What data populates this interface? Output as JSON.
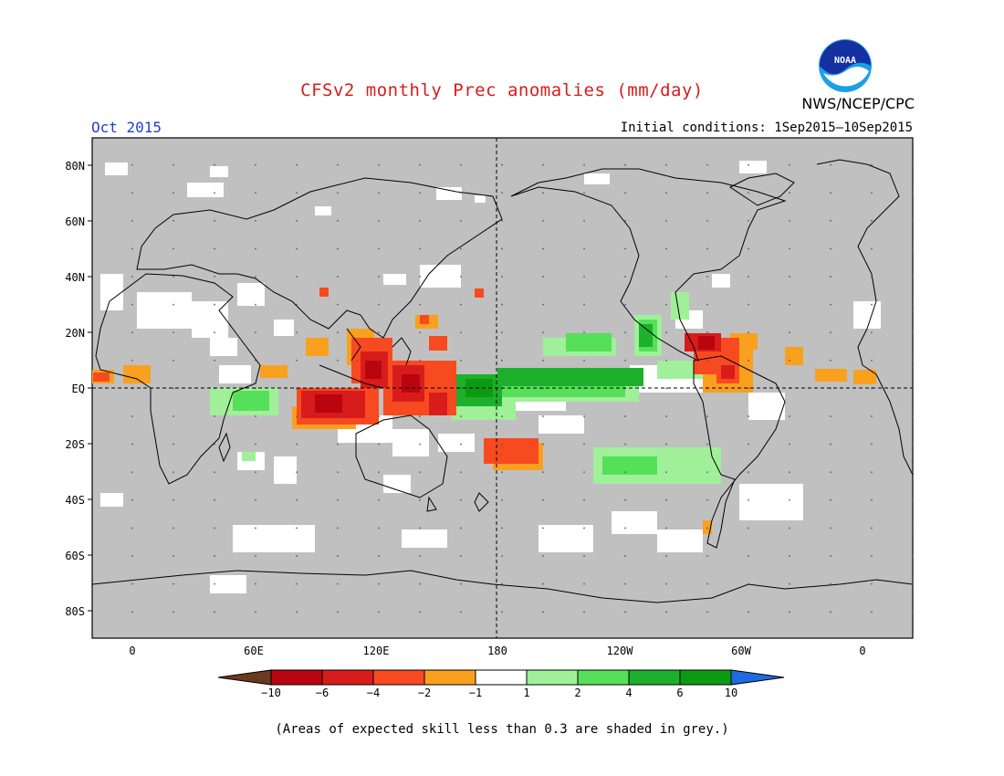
{
  "title": "CFSv2 monthly Prec anomalies (mm/day)",
  "org": "NWS/NCEP/CPC",
  "logo_text": "NOAA",
  "month": "Oct 2015",
  "initial_conditions": "Initial conditions: 1Sep2015–10Sep2015",
  "footer_note": "(Areas of expected skill less than 0.3 are shaded in grey.)",
  "map": {
    "lat_labels": [
      "80N",
      "60N",
      "40N",
      "20N",
      "EQ",
      "20S",
      "40S",
      "60S",
      "80S"
    ],
    "lon_labels": [
      "0",
      "60E",
      "120E",
      "180",
      "120W",
      "60W",
      "0"
    ],
    "background_color": "#c0c0c0"
  },
  "colorbar": {
    "labels": [
      "−10",
      "−6",
      "−4",
      "−2",
      "−1",
      "1",
      "2",
      "4",
      "6",
      "10"
    ],
    "colors": [
      "#6b3a1e",
      "#b8050f",
      "#d81c1c",
      "#f84a20",
      "#f9a01e",
      "#ffffff",
      "#a0f09a",
      "#56e05a",
      "#1cb02c",
      "#0c9a12",
      "#1e6be0"
    ]
  }
}
